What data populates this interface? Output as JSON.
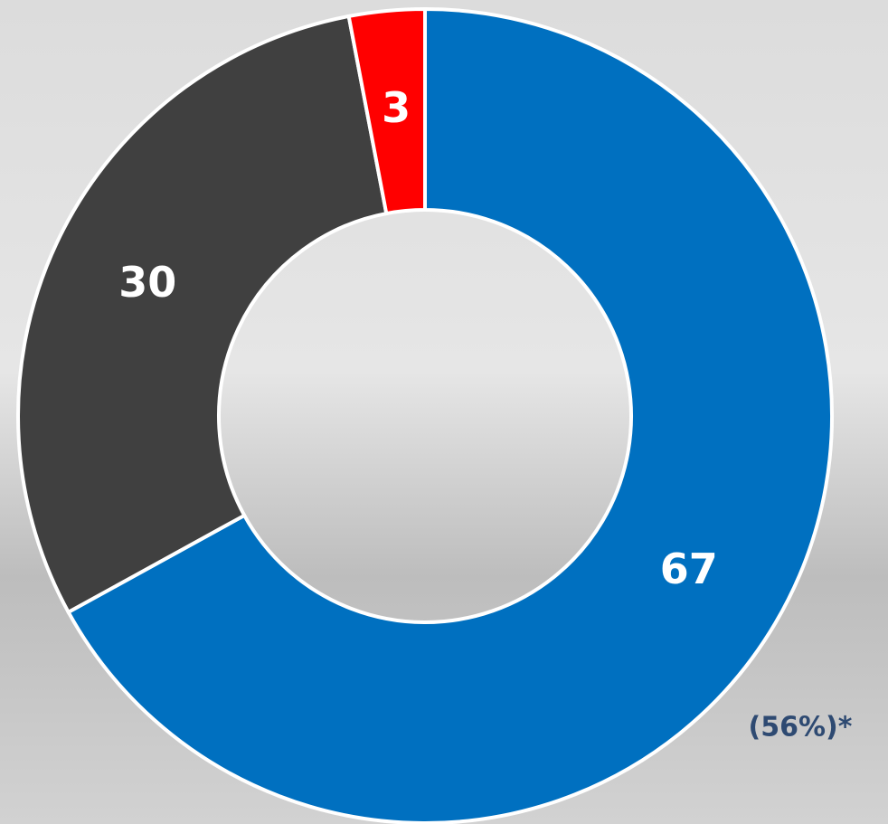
{
  "chart_data": {
    "type": "donut",
    "values": [
      67,
      30,
      3
    ],
    "colors": [
      "#0070c0",
      "#404040",
      "#ff0000"
    ],
    "annotation": "(56%)*"
  }
}
